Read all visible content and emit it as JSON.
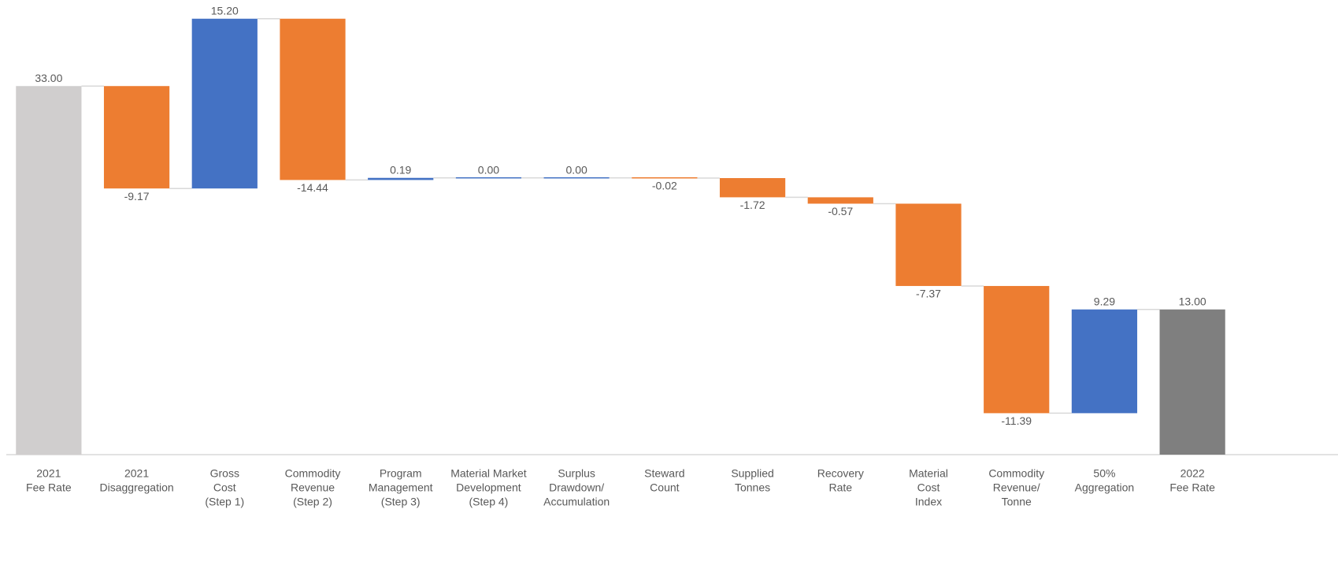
{
  "chart_data": {
    "type": "waterfall",
    "categories": [
      [
        "2021",
        "Fee Rate"
      ],
      [
        "2021",
        "Disaggregation"
      ],
      [
        "Gross",
        "Cost",
        "(Step 1)"
      ],
      [
        "Commodity",
        "Revenue",
        "(Step 2)"
      ],
      [
        "Program",
        "Management",
        "(Step 3)"
      ],
      [
        "Material Market",
        "Development",
        "(Step 4)"
      ],
      [
        "Surplus",
        "Drawdown/",
        "Accumulation"
      ],
      [
        "Steward",
        "Count"
      ],
      [
        "Supplied",
        "Tonnes"
      ],
      [
        "Recovery",
        "Rate"
      ],
      [
        "Material",
        "Cost",
        "Index"
      ],
      [
        "Commodity",
        "Revenue/",
        "Tonne"
      ],
      [
        "50%",
        "Aggregation"
      ],
      [
        "2022",
        "Fee Rate"
      ]
    ],
    "values": [
      33,
      -9.17,
      15.2,
      -14.44,
      0.19,
      0,
      0,
      -0.02,
      -1.72,
      -0.57,
      -7.37,
      -11.39,
      9.29,
      13
    ],
    "value_labels": [
      "33.00",
      "-9.17",
      "15.20",
      "-14.44",
      "0.19",
      "0.00",
      "0.00",
      "-0.02",
      "-1.72",
      "-0.57",
      "-7.37",
      "-11.39",
      "9.29",
      "13.00"
    ],
    "totals": [
      true,
      false,
      false,
      false,
      false,
      false,
      false,
      false,
      false,
      false,
      false,
      false,
      false,
      true
    ],
    "colors": [
      "#d0cece",
      "#ed7d31",
      "#4472c4",
      "#ed7d31",
      "#4472c4",
      "#4472c4",
      "#4472c4",
      "#ed7d31",
      "#ed7d31",
      "#ed7d31",
      "#ed7d31",
      "#ed7d31",
      "#4472c4",
      "#7f7f7f"
    ],
    "ylim": [
      0,
      40
    ]
  }
}
